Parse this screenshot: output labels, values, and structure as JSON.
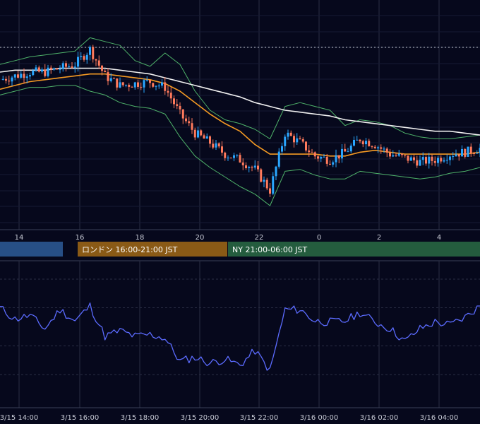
{
  "colors": {
    "background": "#06081c",
    "grid": "#2a2e44",
    "candle_up": "#2aa6ff",
    "candle_down": "#ff7a5c",
    "bollinger": "#4fb36a",
    "sma_short": "#f59a23",
    "sma_long": "#f0f0f0",
    "rsi_line": "#5b6bff",
    "session_tokyo": "#274f86",
    "session_london": "#8a5a16",
    "session_ny": "#245c3e"
  },
  "sessions": [
    {
      "label": ""
    },
    {
      "label": "ロンドン 16:00-21:00 JST"
    },
    {
      "label": "NY 21:00-06:00 JST"
    }
  ],
  "chart_data": [
    {
      "type": "candlestick",
      "x_tick_labels": [
        "14",
        "16",
        "18",
        "20",
        "22",
        "0",
        "2",
        "4"
      ],
      "ylim": [
        0,
        100
      ],
      "series": [
        {
          "name": "",
          "kind": "close",
          "x": [
            13.0,
            13.5,
            14.0,
            14.5,
            15.0,
            15.5,
            16.0,
            16.5,
            17.0,
            17.5,
            18.0,
            18.5,
            19.0,
            19.5,
            20.0,
            20.5,
            21.0,
            21.5,
            22.0,
            22.5,
            23.0,
            23.5,
            24.0,
            24.5,
            25.0,
            25.5,
            26.0,
            26.5,
            27.0,
            27.5,
            28.0,
            28.5,
            29.0
          ],
          "values": [
            76,
            78,
            80,
            80,
            82,
            84,
            92,
            78,
            73,
            74,
            75,
            72,
            58,
            48,
            43,
            37,
            34,
            29,
            18,
            48,
            43,
            36,
            34,
            38,
            45,
            42,
            37,
            35,
            33,
            34,
            37,
            38,
            40
          ]
        },
        {
          "name": "",
          "kind": "sma_short",
          "values": [
            71,
            73,
            75,
            76,
            77,
            78,
            79,
            79,
            78,
            77,
            76,
            74,
            70,
            64,
            58,
            53,
            49,
            42,
            37,
            37,
            37,
            37,
            36,
            36,
            38,
            39,
            38,
            37,
            37,
            37,
            37,
            37,
            38
          ]
        },
        {
          "name": "",
          "kind": "sma_long",
          "values": [
            80,
            81,
            81,
            81,
            82,
            82,
            82,
            82,
            81,
            80,
            79,
            77,
            75,
            73,
            71,
            69,
            67,
            64,
            62,
            60,
            59,
            58,
            57,
            55,
            54,
            53,
            52,
            51,
            50,
            49,
            49,
            48,
            47
          ]
        },
        {
          "name": "",
          "kind": "bollinger_upper",
          "values": [
            84,
            86,
            88,
            89,
            90,
            91,
            98,
            96,
            94,
            86,
            83,
            90,
            84,
            70,
            60,
            55,
            53,
            50,
            45,
            62,
            64,
            62,
            60,
            52,
            55,
            54,
            52,
            48,
            46,
            45,
            45,
            46,
            47
          ]
        },
        {
          "name": "",
          "kind": "bollinger_lower",
          "values": [
            68,
            70,
            72,
            72,
            73,
            73,
            70,
            68,
            64,
            62,
            61,
            58,
            46,
            36,
            30,
            25,
            20,
            16,
            10,
            28,
            29,
            26,
            24,
            24,
            28,
            27,
            26,
            25,
            24,
            25,
            27,
            28,
            30
          ]
        }
      ]
    },
    {
      "type": "line",
      "x_tick_labels": [
        "3/15 14:00",
        "3/15 16:00",
        "3/15 18:00",
        "3/15 20:00",
        "3/15 22:00",
        "3/16 00:00",
        "3/16 02:00",
        "3/16 04:00"
      ],
      "ylim": [
        0,
        100
      ],
      "series": [
        {
          "name": "",
          "kind": "oscillator",
          "x": [
            13.0,
            13.5,
            14.0,
            14.5,
            15.0,
            15.5,
            16.0,
            16.5,
            17.0,
            17.5,
            18.0,
            18.5,
            19.0,
            19.5,
            20.0,
            20.5,
            21.0,
            21.5,
            22.0,
            22.5,
            23.0,
            23.5,
            24.0,
            24.5,
            25.0,
            25.5,
            26.0,
            26.5,
            27.0,
            27.5,
            28.0,
            28.5,
            29.0
          ],
          "values": [
            70,
            58,
            62,
            48,
            68,
            56,
            72,
            40,
            46,
            40,
            42,
            38,
            14,
            18,
            12,
            16,
            10,
            25,
            4,
            68,
            68,
            56,
            55,
            56,
            65,
            55,
            48,
            35,
            48,
            55,
            52,
            60,
            72
          ]
        }
      ]
    }
  ]
}
